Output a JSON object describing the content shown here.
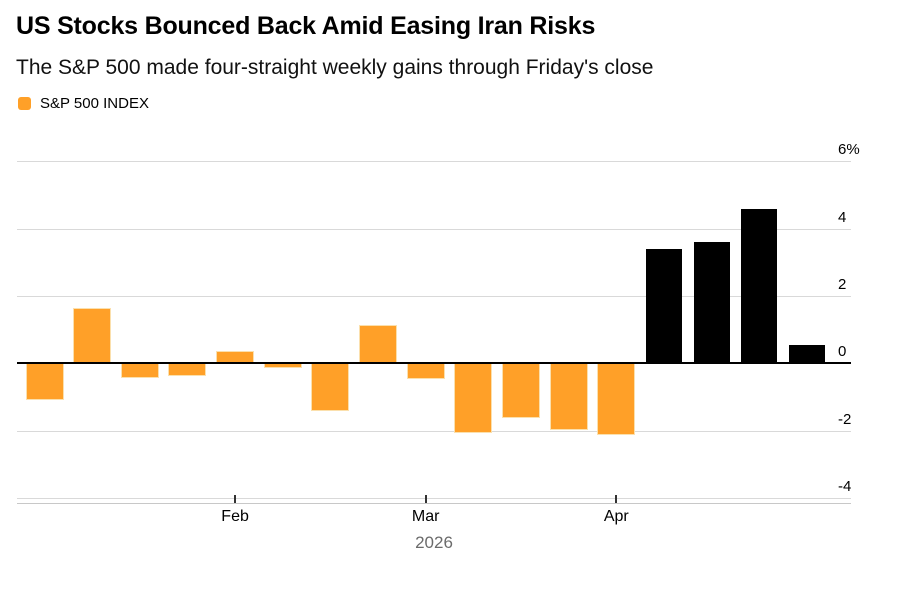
{
  "header": {
    "title": "US Stocks Bounced Back Amid Easing Iran Risks",
    "subtitle": "The S&P 500 made four-straight weekly gains through Friday's close"
  },
  "legend": {
    "label": "S&P 500 INDEX",
    "swatch_color": "#FFA028"
  },
  "colors": {
    "orange_bar": "#FFA028",
    "black_bar": "#000000",
    "gridline": "#d9d9d9",
    "zero_line": "#000000",
    "year_text": "#6b6b6b"
  },
  "chart_data": {
    "type": "bar",
    "title": "US Stocks Bounced Back Amid Easing Iran Risks",
    "subtitle": "The S&P 500 made four-straight weekly gains through Friday's close",
    "series_name": "S&P 500 INDEX",
    "unit": "% weekly change",
    "x_description": "weekly bars, Jan-Apr 2026",
    "values": [
      -1.05,
      1.6,
      -0.4,
      -0.35,
      0.35,
      -0.1,
      -1.4,
      1.1,
      -0.45,
      -2.05,
      -1.6,
      -1.95,
      -2.1,
      3.4,
      3.6,
      4.6,
      0.55
    ],
    "bar_colors": [
      "#FFA028",
      "#FFA028",
      "#FFA028",
      "#FFA028",
      "#FFA028",
      "#FFA028",
      "#FFA028",
      "#FFA028",
      "#FFA028",
      "#FFA028",
      "#FFA028",
      "#FFA028",
      "#FFA028",
      "#000000",
      "#000000",
      "#000000",
      "#000000"
    ],
    "y_ticks": [
      6,
      4,
      2,
      0,
      -2,
      -4
    ],
    "y_tick_labels": [
      "6%",
      "4",
      "2",
      "0",
      "-2",
      "-4"
    ],
    "ylim": [
      -4.4,
      6.4
    ],
    "x_ticks": [
      {
        "index": 4,
        "label": "Feb"
      },
      {
        "index": 8,
        "label": "Mar"
      },
      {
        "index": 12,
        "label": "Apr"
      }
    ],
    "year_label": "2026",
    "grid": true,
    "axis_side": "right",
    "legend_position": "top-left",
    "zero_line": true
  }
}
